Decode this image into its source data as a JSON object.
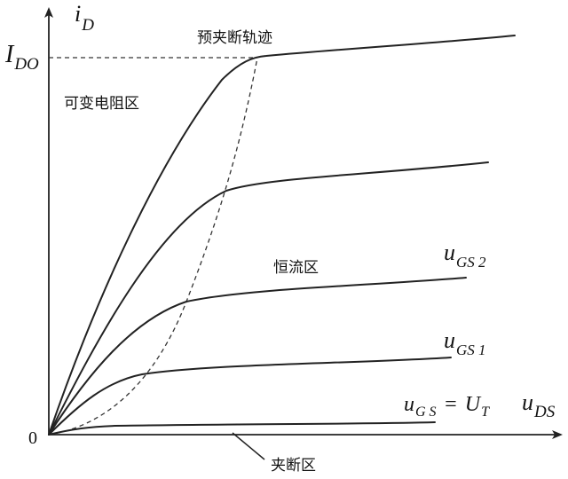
{
  "axes": {
    "y_symbol": "i",
    "y_subscript": "D",
    "x_symbol": "u",
    "x_subscript": "DS",
    "origin": "0",
    "ido_symbol": "I",
    "ido_subscript": "DO"
  },
  "regions": {
    "pinchoff_locus": "预夹断轨迹",
    "variable_resistance": "可变电阻区",
    "constant_current": "恒流区",
    "cutoff": "夹断区"
  },
  "curve_labels": {
    "ugs2_symbol": "u",
    "ugs2_subscript": "GS 2",
    "ugs1_symbol": "u",
    "ugs1_subscript": "GS 1",
    "ugsut_symbol": "u",
    "ugsut_subscript": "G S",
    "ugsut_eq": "=",
    "ugsut_rhs": "U",
    "ugsut_rhs_subscript": "T"
  },
  "colors": {
    "ink": "#222222",
    "background": "#ffffff"
  }
}
